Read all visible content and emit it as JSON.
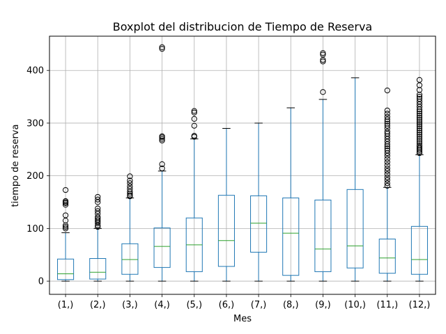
{
  "chart_data": {
    "type": "boxplot",
    "title": "Boxplot del distribucion de Tiempo de Reserva",
    "xlabel": "Mes",
    "ylabel": "tiempo de reserva",
    "ylim": [
      -25,
      465
    ],
    "yticks": [
      0,
      100,
      200,
      300,
      400
    ],
    "grid": true,
    "colors": {
      "box": "#1f77b4",
      "median": "#2ca02c",
      "grid": "#b0b0b0",
      "flier": "#000000"
    },
    "categories": [
      "(1,)",
      "(2,)",
      "(3,)",
      "(4,)",
      "(5,)",
      "(6,)",
      "(7,)",
      "(8,)",
      "(9,)",
      "(10,)",
      "(11,)",
      "(12,)"
    ],
    "boxes": [
      {
        "whislo": 0,
        "q1": 3,
        "med": 14,
        "q3": 42,
        "whishi": 92,
        "fliers": [
          100,
          103,
          106,
          115,
          125,
          145,
          148,
          150,
          152,
          173
        ]
      },
      {
        "whislo": 0,
        "q1": 4,
        "med": 17,
        "q3": 43,
        "whishi": 100,
        "fliers": [
          103,
          106,
          110,
          113,
          116,
          119,
          122,
          128,
          133,
          138,
          150,
          155,
          160
        ]
      },
      {
        "whislo": 0,
        "q1": 13,
        "med": 41,
        "q3": 71,
        "whishi": 158,
        "fliers": [
          161,
          163,
          166,
          170,
          175,
          180,
          186,
          191,
          199
        ]
      },
      {
        "whislo": 0,
        "q1": 26,
        "med": 66,
        "q3": 101,
        "whishi": 209,
        "fliers": [
          214,
          222,
          267,
          270,
          273,
          275,
          441,
          444
        ]
      },
      {
        "whislo": 0,
        "q1": 18,
        "med": 69,
        "q3": 120,
        "whishi": 270,
        "fliers": [
          274,
          276,
          295,
          308,
          320,
          323
        ]
      },
      {
        "whislo": 0,
        "q1": 28,
        "med": 77,
        "q3": 163,
        "whishi": 290,
        "fliers": []
      },
      {
        "whislo": 0,
        "q1": 55,
        "med": 110,
        "q3": 162,
        "whishi": 300,
        "fliers": []
      },
      {
        "whislo": 0,
        "q1": 11,
        "med": 91,
        "q3": 158,
        "whishi": 329,
        "fliers": []
      },
      {
        "whislo": 0,
        "q1": 18,
        "med": 61,
        "q3": 154,
        "whishi": 345,
        "fliers": [
          359,
          417,
          420,
          430,
          433
        ]
      },
      {
        "whislo": 0,
        "q1": 25,
        "med": 67,
        "q3": 174,
        "whishi": 386,
        "fliers": []
      },
      {
        "whislo": 0,
        "q1": 15,
        "med": 44,
        "q3": 80,
        "whishi": 178,
        "fliers": [
          181,
          186,
          192,
          197,
          203,
          209,
          214,
          220,
          226,
          232,
          238,
          243,
          248,
          252,
          256,
          260,
          265,
          270,
          275,
          280,
          284,
          290,
          295,
          299,
          303,
          307,
          312,
          318,
          324,
          362
        ]
      },
      {
        "whislo": 0,
        "q1": 13,
        "med": 41,
        "q3": 104,
        "whishi": 240,
        "fliers": [
          243,
          246,
          249,
          252,
          255,
          258,
          262,
          266,
          270,
          274,
          278,
          282,
          286,
          290,
          294,
          298,
          302,
          306,
          310,
          314,
          318,
          322,
          326,
          331,
          336,
          341,
          346,
          350,
          354,
          363,
          372,
          382
        ]
      }
    ]
  }
}
